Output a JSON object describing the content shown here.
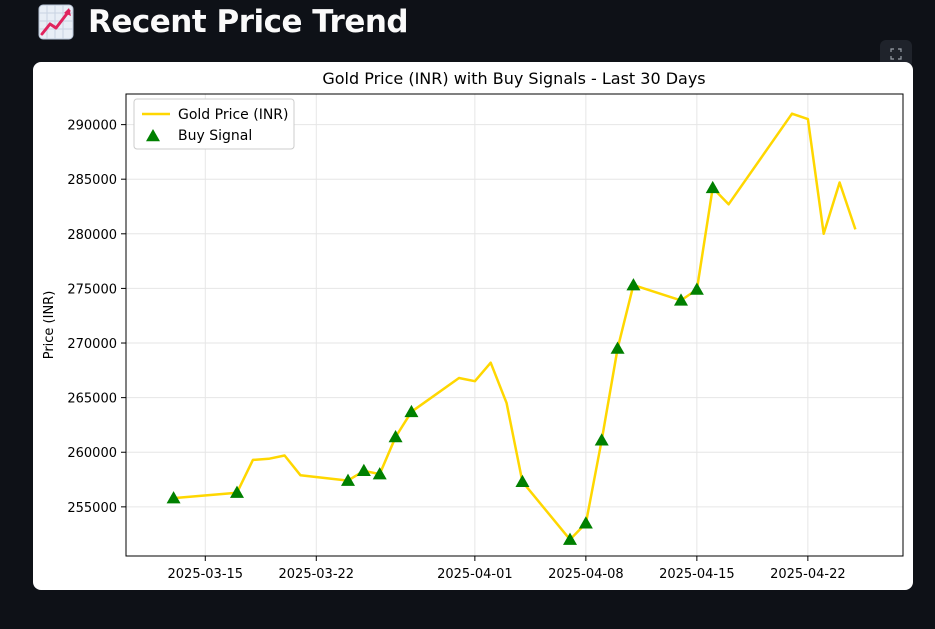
{
  "header": {
    "title": "Recent Price Trend",
    "icon": "chart-increasing-icon"
  },
  "toolbar": {
    "fullscreen_icon": "fullscreen-icon"
  },
  "chart_data": {
    "type": "line",
    "title": "Gold Price (INR) with Buy Signals - Last 30 Days",
    "xlabel": "",
    "ylabel": "Price (INR)",
    "ylim": [
      250500,
      292800
    ],
    "xlim": [
      "2025-03-10",
      "2025-04-28"
    ],
    "x_ticks": [
      "2025-03-15",
      "2025-03-22",
      "2025-04-01",
      "2025-04-08",
      "2025-04-15",
      "2025-04-22"
    ],
    "y_ticks": [
      255000,
      260000,
      265000,
      270000,
      275000,
      280000,
      285000,
      290000
    ],
    "grid": true,
    "legend_position": "top-left",
    "series": [
      {
        "name": "Gold Price (INR)",
        "color": "#ffd700",
        "points": [
          [
            "2025-03-13",
            255800
          ],
          [
            "2025-03-17",
            256300
          ],
          [
            "2025-03-18",
            259300
          ],
          [
            "2025-03-19",
            259400
          ],
          [
            "2025-03-20",
            259700
          ],
          [
            "2025-03-21",
            257900
          ],
          [
            "2025-03-24",
            257400
          ],
          [
            "2025-03-25",
            258300
          ],
          [
            "2025-03-26",
            258000
          ],
          [
            "2025-03-27",
            261400
          ],
          [
            "2025-03-28",
            263700
          ],
          [
            "2025-03-31",
            266800
          ],
          [
            "2025-04-01",
            266500
          ],
          [
            "2025-04-02",
            268200
          ],
          [
            "2025-04-03",
            264500
          ],
          [
            "2025-04-04",
            257300
          ],
          [
            "2025-04-07",
            252000
          ],
          [
            "2025-04-08",
            253500
          ],
          [
            "2025-04-09",
            261100
          ],
          [
            "2025-04-10",
            269500
          ],
          [
            "2025-04-11",
            275300
          ],
          [
            "2025-04-14",
            273900
          ],
          [
            "2025-04-15",
            274900
          ],
          [
            "2025-04-16",
            284200
          ],
          [
            "2025-04-17",
            282700
          ],
          [
            "2025-04-21",
            291000
          ],
          [
            "2025-04-22",
            290500
          ],
          [
            "2025-04-23",
            280000
          ],
          [
            "2025-04-24",
            284700
          ],
          [
            "2025-04-25",
            280400
          ]
        ]
      },
      {
        "name": "Buy Signal",
        "color": "#008000",
        "marker": "triangle-up",
        "points": [
          [
            "2025-03-13",
            255800
          ],
          [
            "2025-03-17",
            256300
          ],
          [
            "2025-03-24",
            257400
          ],
          [
            "2025-03-25",
            258300
          ],
          [
            "2025-03-26",
            258000
          ],
          [
            "2025-03-27",
            261400
          ],
          [
            "2025-03-28",
            263700
          ],
          [
            "2025-04-04",
            257300
          ],
          [
            "2025-04-07",
            252000
          ],
          [
            "2025-04-08",
            253500
          ],
          [
            "2025-04-09",
            261100
          ],
          [
            "2025-04-10",
            269500
          ],
          [
            "2025-04-11",
            275300
          ],
          [
            "2025-04-14",
            273900
          ],
          [
            "2025-04-15",
            274900
          ],
          [
            "2025-04-16",
            284200
          ]
        ]
      }
    ]
  }
}
